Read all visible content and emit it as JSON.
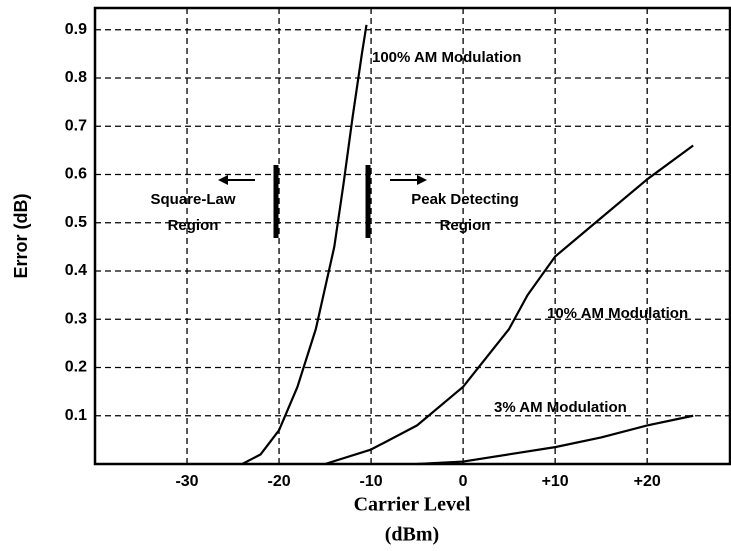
{
  "chart_data": {
    "type": "line",
    "ylabel": "Error (dB)",
    "xlabel": [
      "Carrier Level",
      "(dBm)"
    ],
    "xlim": [
      -40,
      29
    ],
    "ylim": [
      0,
      0.945
    ],
    "xticks": [
      -30,
      -20,
      -10,
      0,
      {
        "value": 10,
        "label": "+10"
      },
      {
        "value": 20,
        "label": "+20"
      }
    ],
    "yticks": [
      0.1,
      0.2,
      0.3,
      0.4,
      0.5,
      0.6,
      0.7,
      0.8,
      0.9
    ],
    "grid": true,
    "series": [
      {
        "name": "100% AM Modulation",
        "color": "#000000",
        "x": [
          -24,
          -22,
          -20,
          -18,
          -16,
          -14,
          -13,
          -12,
          -11,
          -10.5
        ],
        "values": [
          0,
          0.02,
          0.07,
          0.16,
          0.28,
          0.45,
          0.58,
          0.72,
          0.85,
          0.91
        ]
      },
      {
        "name": "10% AM Modulation",
        "color": "#000000",
        "x": [
          -15,
          -10,
          -5,
          0,
          5,
          7,
          10,
          15,
          20,
          25
        ],
        "values": [
          0,
          0.03,
          0.08,
          0.16,
          0.28,
          0.35,
          0.43,
          0.51,
          0.59,
          0.66
        ]
      },
      {
        "name": "3% AM Modulation",
        "color": "#000000",
        "x": [
          -5,
          0,
          5,
          10,
          15,
          20,
          25
        ],
        "values": [
          0,
          0.005,
          0.02,
          0.035,
          0.055,
          0.08,
          0.1
        ]
      }
    ],
    "annotations": [
      {
        "lines": [
          "Square-Law",
          "Region"
        ]
      },
      {
        "lines": [
          "Peak Detecting",
          "Region"
        ]
      }
    ]
  }
}
